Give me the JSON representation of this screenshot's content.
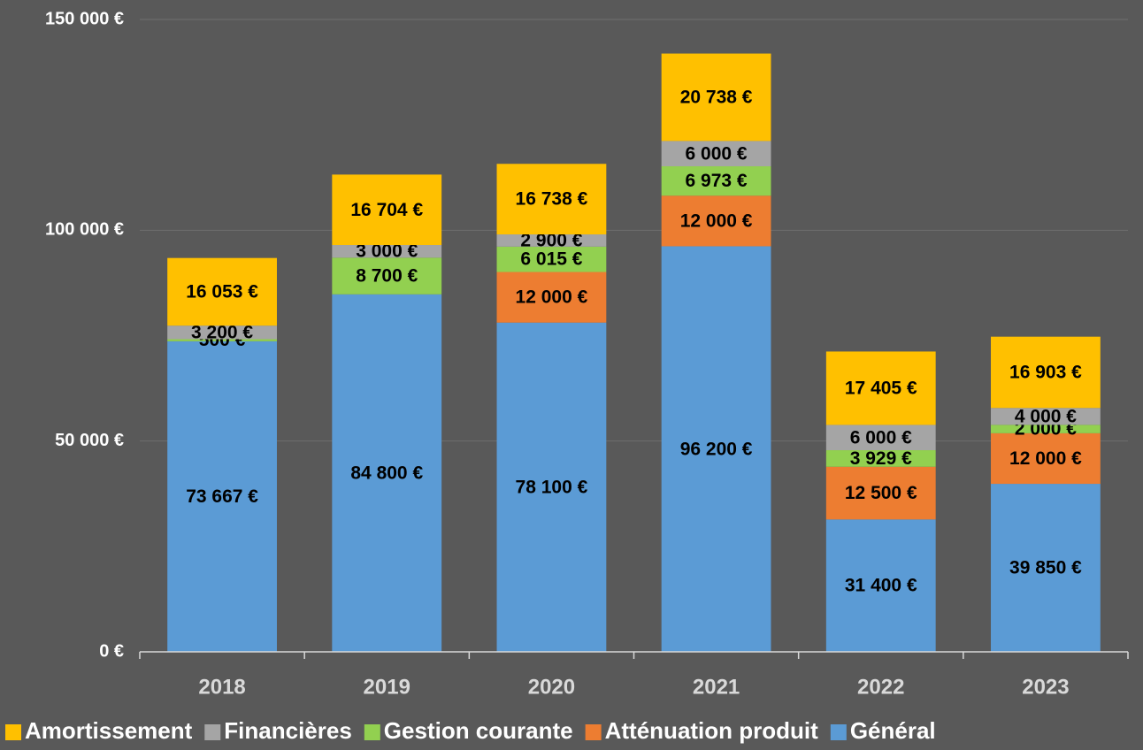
{
  "chart_data": {
    "type": "stacked-bar",
    "categories": [
      "2018",
      "2019",
      "2020",
      "2021",
      "2022",
      "2023"
    ],
    "series": [
      {
        "name": "Amortissement",
        "color": "#ffc000",
        "values": [
          16053,
          16704,
          16738,
          20738,
          17405,
          16903
        ],
        "value_labels": [
          "16 053 €",
          "16 704 €",
          "16 738 €",
          "20 738 €",
          "17 405 €",
          "16 903 €"
        ]
      },
      {
        "name": "Financières",
        "color": "#a5a5a5",
        "values": [
          3200,
          3000,
          2900,
          6000,
          6000,
          4000
        ],
        "value_labels": [
          "3 200 €",
          "3 000 €",
          "2 900 €",
          "6 000 €",
          "6 000 €",
          "4 000 €"
        ]
      },
      {
        "name": "Gestion courante",
        "color": "#92d050",
        "values": [
          500,
          8700,
          6015,
          6973,
          3929,
          2000
        ],
        "value_labels": [
          "500 €",
          "8 700 €",
          "6 015 €",
          "6 973 €",
          "3 929 €",
          "2 000 €"
        ]
      },
      {
        "name": "Atténuation produit",
        "color": "#ed7d31",
        "values": [
          null,
          null,
          12000,
          12000,
          12500,
          12000
        ],
        "value_labels": [
          null,
          null,
          "12 000 €",
          "12 000 €",
          "12 500 €",
          "12 000 €"
        ]
      },
      {
        "name": "Général",
        "color": "#5b9bd5",
        "values": [
          73667,
          84800,
          78100,
          96200,
          31400,
          39850
        ],
        "value_labels": [
          "73 667 €",
          "84 800 €",
          "78 100 €",
          "96 200 €",
          "31 400 €",
          "39 850 €"
        ]
      }
    ],
    "ylim": [
      0,
      150000
    ],
    "yticks": [
      {
        "value": 0,
        "label": "0 €"
      },
      {
        "value": 50000,
        "label": "50 000 €"
      },
      {
        "value": 100000,
        "label": "100 000 €"
      },
      {
        "value": 150000,
        "label": "150 000 €"
      }
    ],
    "grid": true,
    "legend": "bottom"
  }
}
